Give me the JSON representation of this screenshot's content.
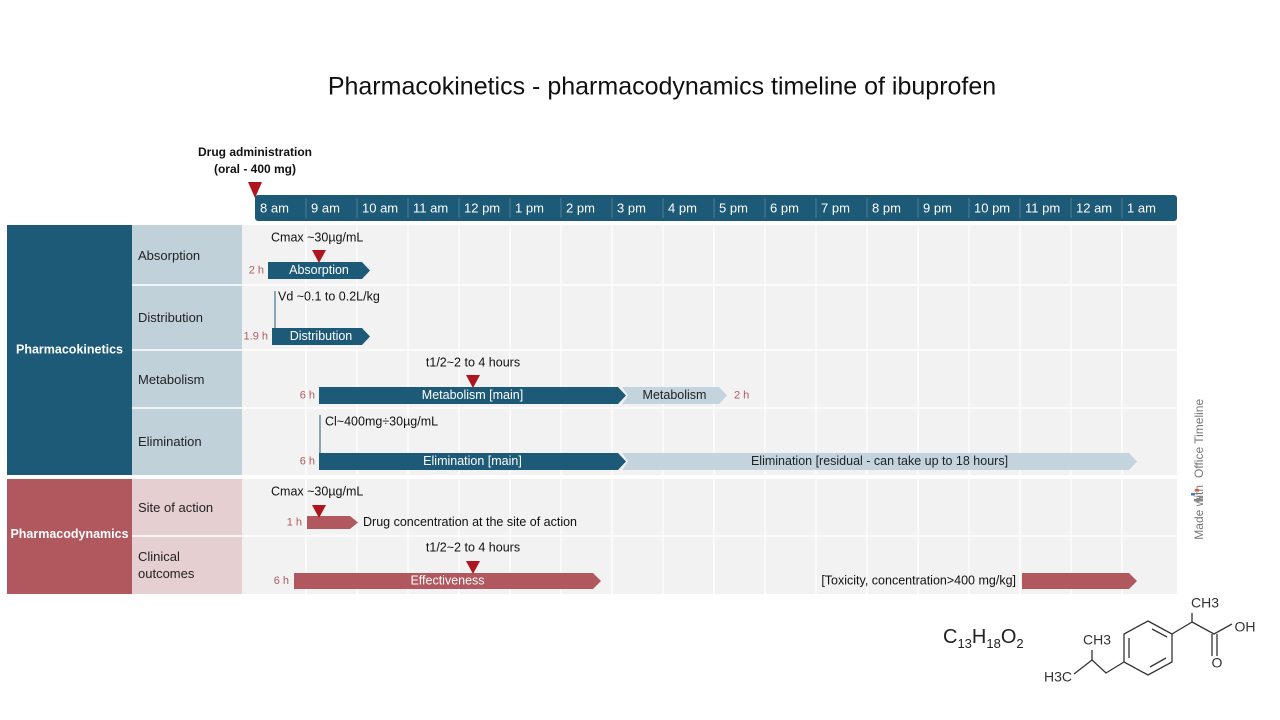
{
  "title": "Pharmacokinetics - pharmacodynamics timeline of ibuprofen",
  "administration": {
    "lines": [
      "Drug administration",
      "(oral - 400 mg)"
    ]
  },
  "timeline": {
    "hours": [
      "8 am",
      "9 am",
      "10 am",
      "11 am",
      "12 pm",
      "1 pm",
      "2 pm",
      "3 pm",
      "4 pm",
      "5 pm",
      "6 pm",
      "7 pm",
      "8 pm",
      "9 pm",
      "10 pm",
      "11 pm",
      "12 am",
      "1 am"
    ]
  },
  "groups": [
    {
      "name": "Pharmacokinetics",
      "rows": [
        {
          "name": "Absorption",
          "note": "Cmax ~30µg/mL",
          "tasks": [
            {
              "label": "Absorption",
              "duration": "2 h"
            }
          ]
        },
        {
          "name": "Distribution",
          "note": "Vd ~0.1 to 0.2L/kg",
          "tasks": [
            {
              "label": "Distribution",
              "duration": "1.9 h"
            }
          ]
        },
        {
          "name": "Metabolism",
          "note": "t1/2~2  to 4 hours",
          "tasks": [
            {
              "label": "Metabolism [main]",
              "duration": "6 h"
            },
            {
              "label": "Metabolism",
              "duration": "2 h"
            }
          ]
        },
        {
          "name": "Elimination",
          "note": "Cl~400mg÷30µg/mL",
          "tasks": [
            {
              "label": "Elimination [main]",
              "duration": "6 h"
            },
            {
              "label": "Elimination [residual - can take up to 18 hours]"
            }
          ]
        }
      ]
    },
    {
      "name": "Pharmacodynamics",
      "rows": [
        {
          "name": "Site of action",
          "note": "Cmax ~30µg/mL",
          "tasks": [
            {
              "label": "Drug concentration at the site of action",
              "duration": "1 h"
            }
          ]
        },
        {
          "name": "Clinical outcomes",
          "note": "t1/2~2  to 4 hours",
          "tasks": [
            {
              "label": "Effectiveness",
              "duration": "6 h"
            },
            {
              "label": "[Toxicity, concentration>400 mg/kg]"
            }
          ]
        }
      ]
    }
  ],
  "watermark": {
    "prefix": "Made with",
    "brand": "Office Timeline"
  },
  "formula": {
    "parts": [
      "C",
      "13",
      "H",
      "18",
      "O",
      "2"
    ]
  },
  "structure": {
    "labels": [
      "CH3",
      "OH",
      "O",
      "CH3",
      "H3C"
    ]
  }
}
